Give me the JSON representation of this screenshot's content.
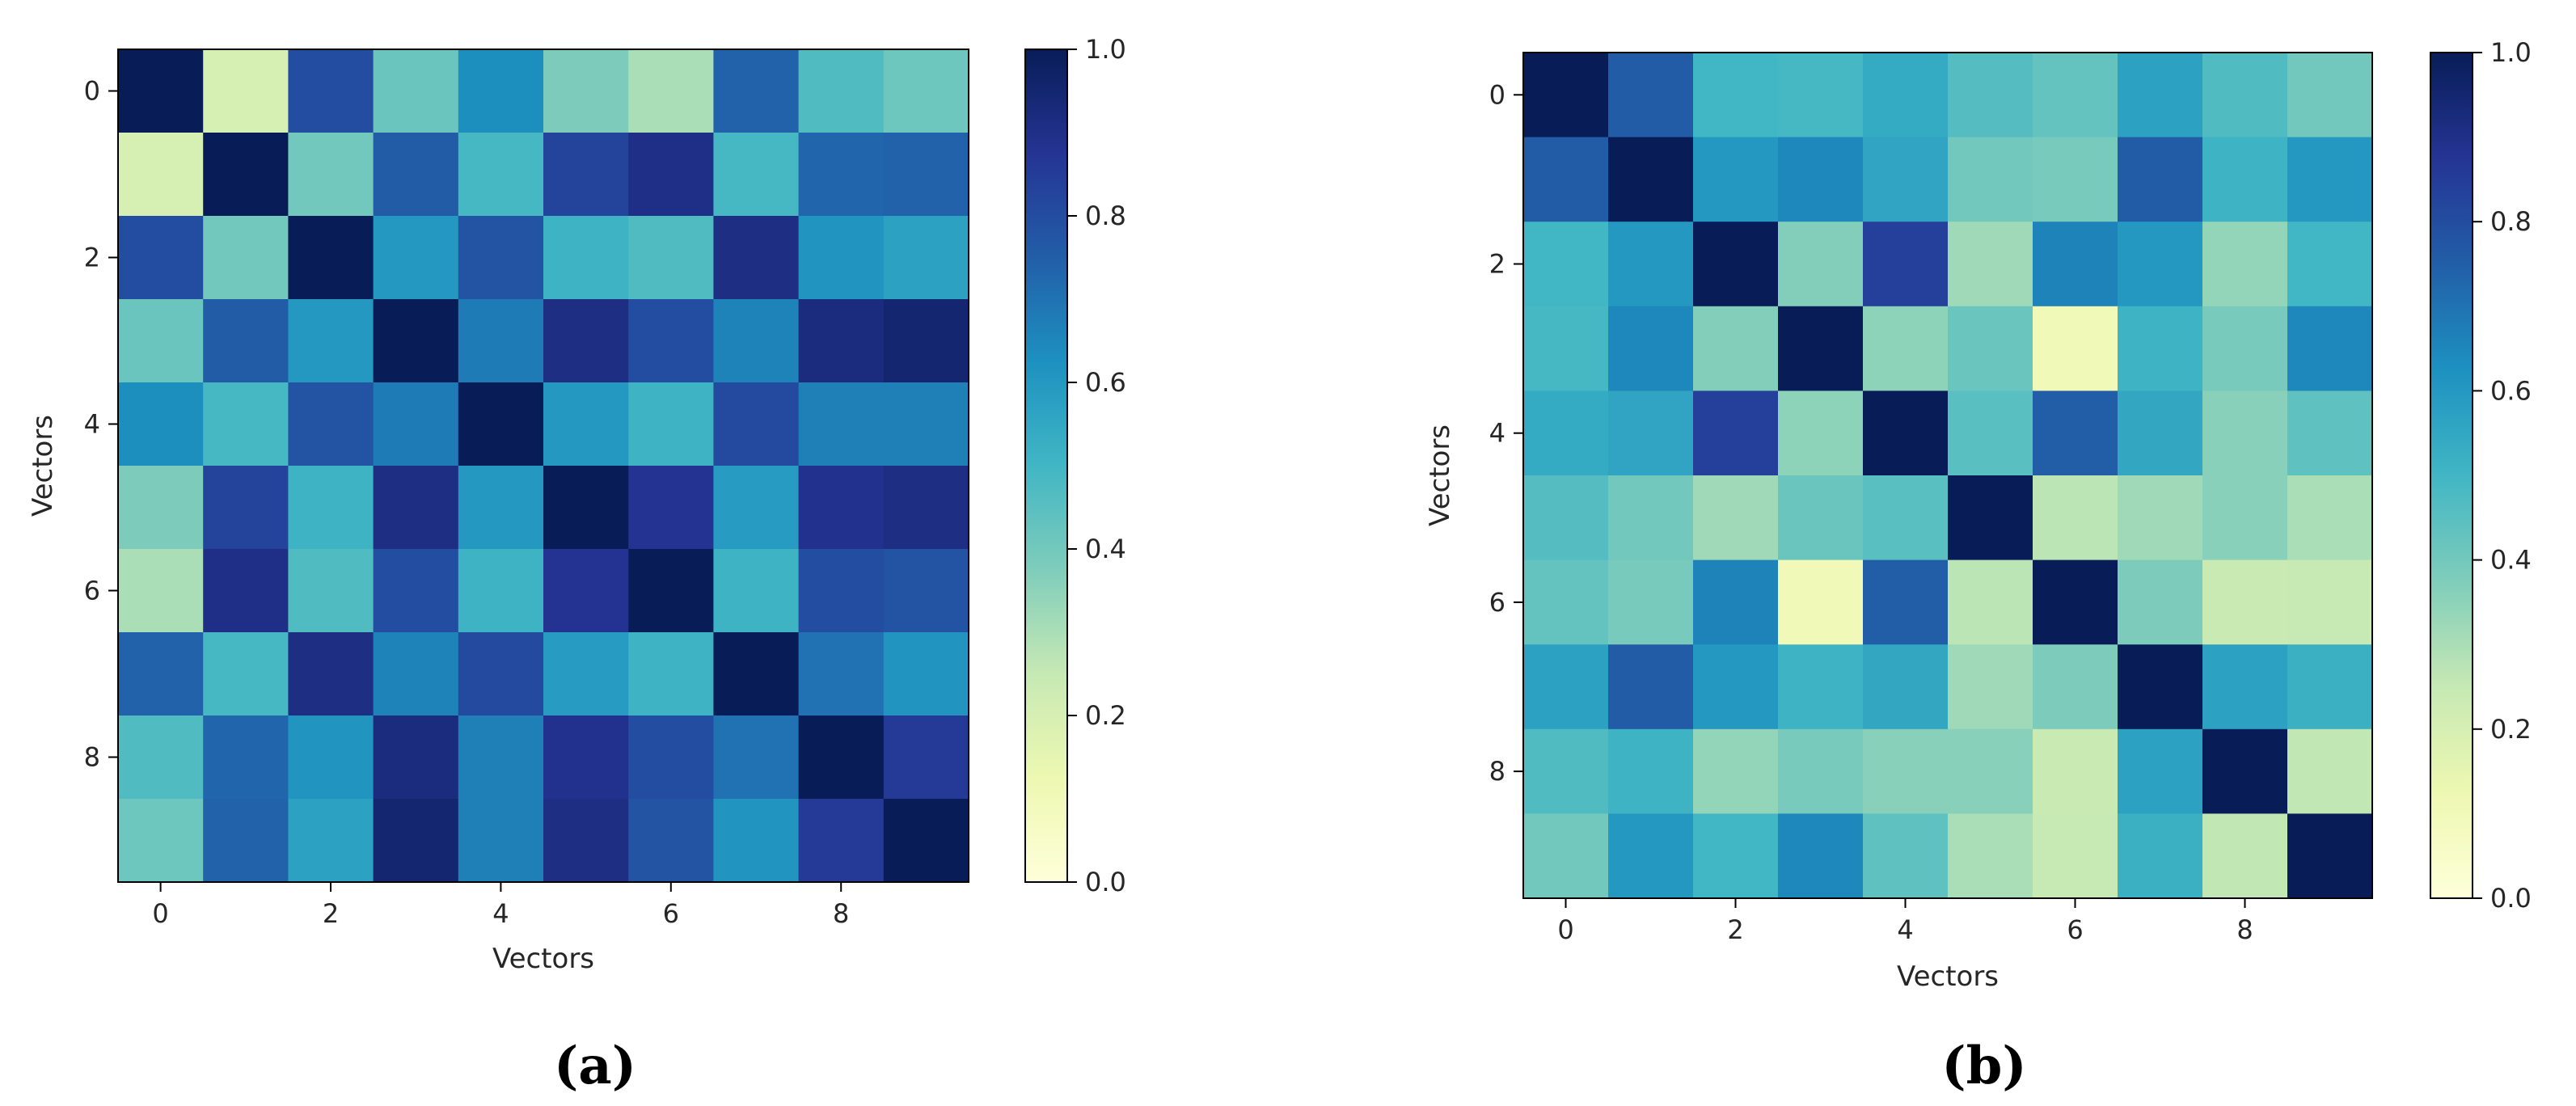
{
  "colormap": {
    "name": "YlGnBu",
    "stops": [
      "#ffffd9",
      "#edf8b1",
      "#c7e9b4",
      "#7fcdbb",
      "#41b6c4",
      "#1d91c0",
      "#225ea8",
      "#253494",
      "#081d58"
    ]
  },
  "chart_data": [
    {
      "type": "heatmap",
      "caption": "(a)",
      "xlabel": "Vectors",
      "ylabel": "Vectors",
      "x_ticks": [
        "0",
        "2",
        "4",
        "6",
        "8"
      ],
      "y_ticks": [
        "0",
        "2",
        "4",
        "6",
        "8"
      ],
      "colorbar_ticks": [
        "0.0",
        "0.2",
        "0.4",
        "0.6",
        "0.8",
        "1.0"
      ],
      "vmin": 0.0,
      "vmax": 1.0,
      "values": [
        [
          1.0,
          0.2,
          0.8,
          0.42,
          0.63,
          0.38,
          0.3,
          0.74,
          0.47,
          0.41
        ],
        [
          0.2,
          1.0,
          0.4,
          0.76,
          0.49,
          0.83,
          0.9,
          0.49,
          0.73,
          0.74
        ],
        [
          0.8,
          0.4,
          1.0,
          0.6,
          0.78,
          0.51,
          0.47,
          0.91,
          0.61,
          0.57
        ],
        [
          0.42,
          0.76,
          0.6,
          1.0,
          0.68,
          0.91,
          0.8,
          0.66,
          0.92,
          0.95
        ],
        [
          0.63,
          0.49,
          0.78,
          0.68,
          1.0,
          0.6,
          0.51,
          0.81,
          0.67,
          0.67
        ],
        [
          0.38,
          0.83,
          0.51,
          0.91,
          0.6,
          1.0,
          0.88,
          0.59,
          0.89,
          0.91
        ],
        [
          0.3,
          0.9,
          0.47,
          0.8,
          0.51,
          0.88,
          1.0,
          0.51,
          0.8,
          0.78
        ],
        [
          0.74,
          0.49,
          0.91,
          0.66,
          0.81,
          0.59,
          0.51,
          1.0,
          0.7,
          0.61
        ],
        [
          0.47,
          0.73,
          0.61,
          0.92,
          0.67,
          0.89,
          0.8,
          0.7,
          1.0,
          0.86
        ],
        [
          0.41,
          0.74,
          0.57,
          0.95,
          0.67,
          0.91,
          0.78,
          0.61,
          0.86,
          1.0
        ]
      ]
    },
    {
      "type": "heatmap",
      "caption": "(b)",
      "xlabel": "Vectors",
      "ylabel": "Vectors",
      "x_ticks": [
        "0",
        "2",
        "4",
        "6",
        "8"
      ],
      "y_ticks": [
        "0",
        "2",
        "4",
        "6",
        "8"
      ],
      "colorbar_ticks": [
        "0.0",
        "0.2",
        "0.4",
        "0.6",
        "0.8",
        "1.0"
      ],
      "vmin": 0.0,
      "vmax": 1.0,
      "values": [
        [
          1.0,
          0.76,
          0.5,
          0.49,
          0.54,
          0.46,
          0.43,
          0.57,
          0.47,
          0.4
        ],
        [
          0.76,
          1.0,
          0.6,
          0.65,
          0.56,
          0.4,
          0.39,
          0.76,
          0.51,
          0.6
        ],
        [
          0.5,
          0.6,
          1.0,
          0.37,
          0.84,
          0.32,
          0.66,
          0.6,
          0.34,
          0.5
        ],
        [
          0.49,
          0.65,
          0.37,
          1.0,
          0.35,
          0.42,
          0.1,
          0.51,
          0.39,
          0.65
        ],
        [
          0.54,
          0.56,
          0.84,
          0.35,
          1.0,
          0.45,
          0.75,
          0.55,
          0.36,
          0.44
        ],
        [
          0.46,
          0.4,
          0.32,
          0.42,
          0.45,
          1.0,
          0.27,
          0.32,
          0.36,
          0.3
        ],
        [
          0.43,
          0.39,
          0.66,
          0.1,
          0.75,
          0.27,
          1.0,
          0.38,
          0.24,
          0.25
        ],
        [
          0.57,
          0.76,
          0.6,
          0.51,
          0.55,
          0.32,
          0.38,
          1.0,
          0.57,
          0.52
        ],
        [
          0.47,
          0.51,
          0.34,
          0.39,
          0.36,
          0.36,
          0.24,
          0.57,
          1.0,
          0.26
        ],
        [
          0.4,
          0.6,
          0.5,
          0.65,
          0.44,
          0.3,
          0.25,
          0.52,
          0.26,
          1.0
        ]
      ]
    }
  ]
}
